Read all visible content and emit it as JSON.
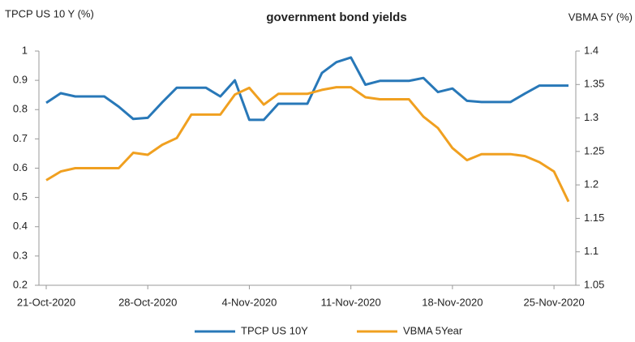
{
  "chart_data": {
    "type": "line",
    "title": "government bond yields",
    "y_label": "TPCP US 10 Y (%)",
    "y2_label": "VBMA 5Y (%)",
    "x": [
      "2020-10-21",
      "2020-10-22",
      "2020-10-23",
      "2020-10-24",
      "2020-10-25",
      "2020-10-26",
      "2020-10-27",
      "2020-10-28",
      "2020-10-29",
      "2020-10-30",
      "2020-10-31",
      "2020-11-01",
      "2020-11-02",
      "2020-11-03",
      "2020-11-04",
      "2020-11-05",
      "2020-11-06",
      "2020-11-07",
      "2020-11-08",
      "2020-11-09",
      "2020-11-10",
      "2020-11-11",
      "2020-11-12",
      "2020-11-13",
      "2020-11-14",
      "2020-11-15",
      "2020-11-16",
      "2020-11-17",
      "2020-11-18",
      "2020-11-19",
      "2020-11-20",
      "2020-11-21",
      "2020-11-22",
      "2020-11-23",
      "2020-11-24",
      "2020-11-25",
      "2020-11-26"
    ],
    "series": [
      {
        "name": "TPCP US 10Y",
        "color": "#2878b8",
        "axis": "y",
        "values": [
          0.823,
          0.856,
          0.845,
          0.845,
          0.845,
          0.81,
          0.768,
          0.772,
          0.825,
          0.875,
          0.875,
          0.875,
          0.845,
          0.9,
          0.765,
          0.765,
          0.82,
          0.82,
          0.82,
          0.925,
          0.962,
          0.978,
          0.885,
          0.898,
          0.898,
          0.898,
          0.908,
          0.86,
          0.872,
          0.83,
          0.826,
          0.826,
          0.826,
          0.855,
          0.882,
          0.882,
          0.882
        ]
      },
      {
        "name": "VBMA 5Year",
        "color": "#f0a020",
        "axis": "y2",
        "values": [
          1.207,
          1.22,
          1.225,
          1.225,
          1.225,
          1.225,
          1.248,
          1.245,
          1.26,
          1.27,
          1.305,
          1.305,
          1.305,
          1.335,
          1.345,
          1.32,
          1.336,
          1.336,
          1.336,
          1.342,
          1.346,
          1.346,
          1.331,
          1.328,
          1.328,
          1.328,
          1.302,
          1.285,
          1.255,
          1.237,
          1.246,
          1.246,
          1.246,
          1.243,
          1.234,
          1.22,
          1.175
        ]
      }
    ],
    "xlim": [
      "2020-10-21",
      "2020-11-26"
    ],
    "xticks": [
      {
        "value": "2020-10-21",
        "label": "21-Oct-2020"
      },
      {
        "value": "2020-10-28",
        "label": "28-Oct-2020"
      },
      {
        "value": "2020-11-04",
        "label": "4-Nov-2020"
      },
      {
        "value": "2020-11-11",
        "label": "11-Nov-2020"
      },
      {
        "value": "2020-11-18",
        "label": "18-Nov-2020"
      },
      {
        "value": "2020-11-25",
        "label": "25-Nov-2020"
      }
    ],
    "ylim": [
      0.2,
      1
    ],
    "yticks": [
      0.2,
      0.3,
      0.4,
      0.5,
      0.6,
      0.7,
      0.8,
      0.9,
      1
    ],
    "y2lim": [
      1.05,
      1.4
    ],
    "y2ticks": [
      1.05,
      1.1,
      1.15,
      1.2,
      1.25,
      1.3,
      1.35,
      1.4
    ],
    "legend": "bottom"
  }
}
